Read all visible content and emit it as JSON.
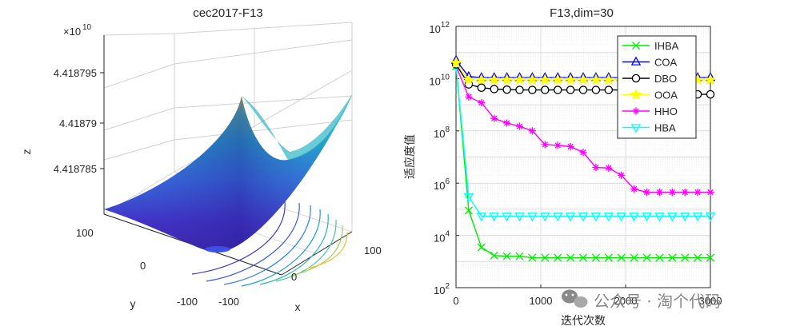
{
  "left_chart": {
    "title": "cec2017-F13",
    "exponent_label": "×10",
    "exponent_power": "10",
    "z_label": "z",
    "y_label": "y",
    "x_label": "x",
    "z_ticks": [
      "4.418795",
      "4.41879",
      "4.418785"
    ],
    "y_ticks": [
      "100",
      "0",
      "-100"
    ],
    "x_ticks": [
      "100",
      "0",
      "-100"
    ]
  },
  "right_chart": {
    "title": "F13,dim=30",
    "x_label": "迭代次数",
    "y_label": "适应度值",
    "x_ticks": [
      "0",
      "1000",
      "2000",
      "3000"
    ],
    "y_tick_powers": [
      "2",
      "4",
      "6",
      "8",
      "10",
      "12"
    ],
    "y_tick_base": "10"
  },
  "watermark": "公众号 · 淘个代码",
  "colors": {
    "IHBA": "#00ee00",
    "COA": "#0000ff",
    "DBO": "#000000",
    "OOA": "#ffff00",
    "HHO": "#ff00ff",
    "HBA": "#00ffff"
  },
  "chart_data": [
    {
      "type": "surface",
      "title": "cec2017-F13",
      "xlabel": "x",
      "ylabel": "y",
      "zlabel": "z",
      "xlim": [
        -100,
        100
      ],
      "ylim": [
        -100,
        100
      ],
      "z_scale": "×10^10",
      "z_ticks": [
        4.418785,
        4.41879,
        4.418795
      ]
    },
    {
      "type": "line",
      "title": "F13,dim=30",
      "xlabel": "迭代次数",
      "ylabel": "适应度值",
      "y_scale": "log",
      "xlim": [
        0,
        3000
      ],
      "ylim": [
        100,
        1000000000000
      ],
      "x": [
        1,
        150,
        300,
        450,
        600,
        750,
        900,
        1050,
        1200,
        1350,
        1500,
        1650,
        1800,
        1950,
        2100,
        2250,
        2400,
        2550,
        2700,
        2850,
        3000
      ],
      "series": [
        {
          "name": "IHBA",
          "marker": "x",
          "values": [
            30000000000,
            90000,
            3500,
            1700,
            1600,
            1600,
            1400,
            1400,
            1400,
            1400,
            1400,
            1400,
            1400,
            1400,
            1400,
            1400,
            1400,
            1400,
            1400,
            1400,
            1400
          ]
        },
        {
          "name": "COA",
          "marker": "triangle-up",
          "values": [
            50000000000,
            12000000000,
            11000000000,
            11000000000,
            11000000000,
            11000000000,
            11000000000,
            11000000000,
            11000000000,
            11000000000,
            11000000000,
            11000000000,
            11000000000,
            11000000000,
            11000000000,
            11000000000,
            11000000000,
            11000000000,
            11000000000,
            11000000000,
            11000000000
          ]
        },
        {
          "name": "DBO",
          "marker": "circle",
          "values": [
            35000000000,
            6000000000,
            4500000000,
            4000000000,
            3800000000,
            3700000000,
            3700000000,
            3700000000,
            3700000000,
            3700000000,
            3700000000,
            3700000000,
            3700000000,
            3700000000,
            3700000000,
            3700000000,
            3700000000,
            3700000000,
            3700000000,
            2500000000,
            2500000000
          ]
        },
        {
          "name": "OOA",
          "marker": "star",
          "values": [
            40000000000,
            9000000000,
            9000000000,
            9000000000,
            9000000000,
            9000000000,
            9000000000,
            9000000000,
            9000000000,
            9000000000,
            9000000000,
            9000000000,
            9000000000,
            9000000000,
            9000000000,
            9000000000,
            9000000000,
            9000000000,
            9000000000,
            9000000000,
            9000000000
          ]
        },
        {
          "name": "HHO",
          "marker": "asterisk",
          "values": [
            30000000000,
            2000000000,
            1200000000,
            300000000,
            200000000,
            150000000,
            100000000,
            30000000,
            28000000,
            25000000,
            15000000,
            4000000,
            3800000,
            2000000,
            600000,
            450000,
            450000,
            450000,
            450000,
            450000,
            450000
          ]
        },
        {
          "name": "HBA",
          "marker": "triangle-down",
          "values": [
            30000000000,
            300000,
            55000,
            55000,
            55000,
            55000,
            55000,
            55000,
            55000,
            55000,
            55000,
            55000,
            55000,
            55000,
            55000,
            55000,
            55000,
            55000,
            55000,
            55000,
            55000
          ]
        }
      ]
    }
  ]
}
